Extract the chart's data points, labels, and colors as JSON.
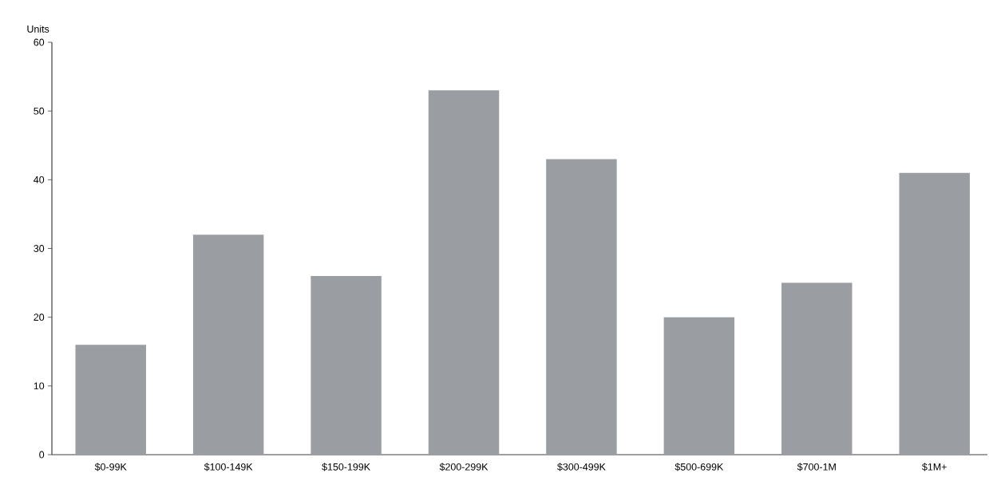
{
  "chart_data": {
    "type": "bar",
    "ylabel": "Units",
    "categories": [
      "$0-99K",
      "$100-149K",
      "$150-199K",
      "$200-299K",
      "$300-499K",
      "$500-699K",
      "$700-1M",
      "$1M+"
    ],
    "values": [
      16,
      32,
      26,
      53,
      43,
      20,
      25,
      41
    ],
    "color": "#9a9da1",
    "ylim": [
      0,
      60
    ],
    "yticks": [
      0,
      10,
      20,
      30,
      40,
      50,
      60
    ]
  }
}
